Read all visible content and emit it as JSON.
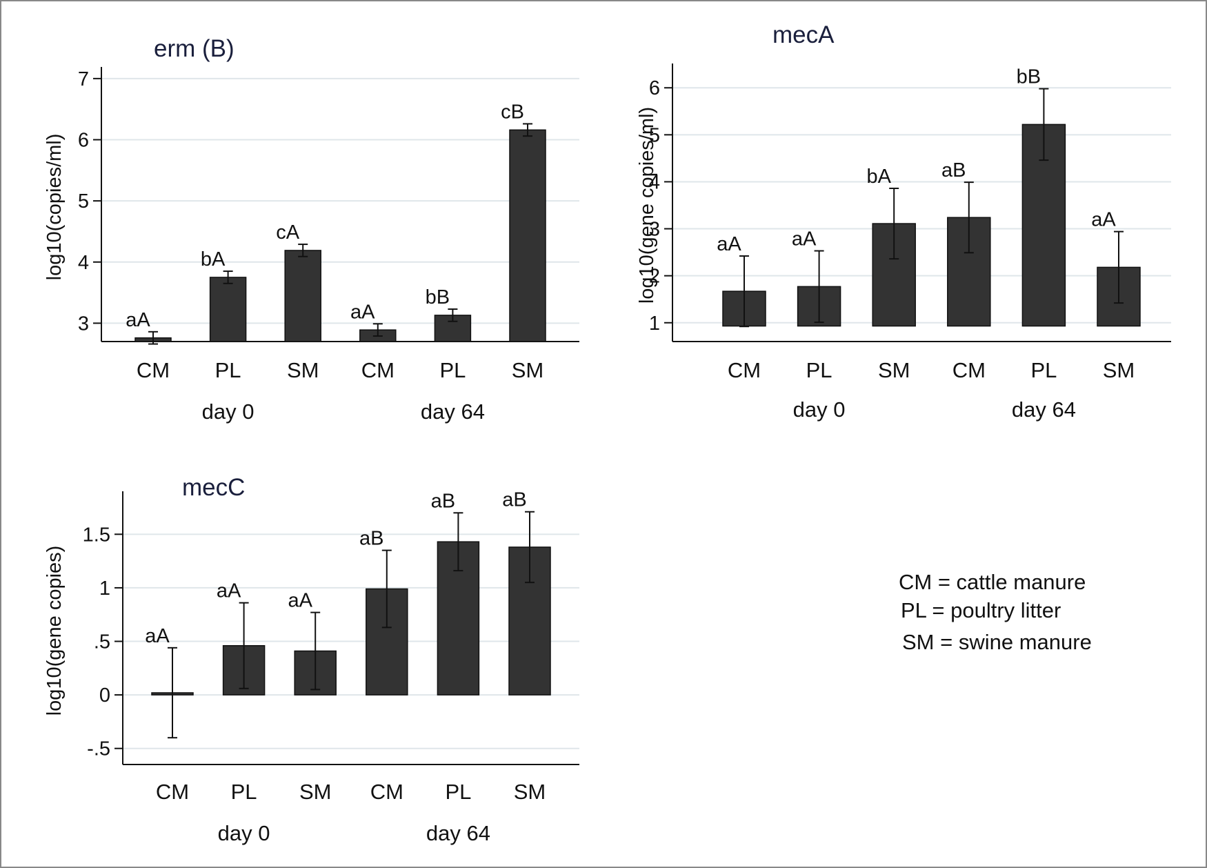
{
  "colors": {
    "bar": "#333333",
    "grid": "#dfe6ea",
    "title": "#1a1f3c",
    "frame": "#888888"
  },
  "legend": [
    "CM = cattle manure",
    "PL = poultry litter",
    "SM = swine manure"
  ],
  "chart_data": [
    {
      "type": "bar",
      "title": "erm (B)",
      "ylabel": "log10(copies/ml)",
      "ylim": [
        2.7,
        7.1
      ],
      "yticks": [
        3,
        4,
        5,
        6,
        7
      ],
      "ytick_labels": [
        "3",
        "4",
        "5",
        "6",
        "7"
      ],
      "baseline": 2.7,
      "categories": [
        "CM",
        "PL",
        "SM",
        "CM",
        "PL",
        "SM"
      ],
      "groups": [
        {
          "label": "day 0",
          "start": 0,
          "end": 2
        },
        {
          "label": "day 64",
          "start": 3,
          "end": 5
        }
      ],
      "values": [
        2.76,
        3.75,
        4.19,
        2.89,
        3.13,
        6.16
      ],
      "errors": [
        0.1,
        0.1,
        0.1,
        0.1,
        0.1,
        0.1
      ],
      "labels": [
        "aA",
        "bA",
        "cA",
        "aA",
        "bB",
        "cB"
      ]
    },
    {
      "type": "bar",
      "title": "mecA",
      "ylabel": "log10(gene copies/ml)",
      "ylim": [
        0.6,
        6.4
      ],
      "yticks": [
        1,
        2,
        3,
        4,
        5,
        6
      ],
      "ytick_labels": [
        "1",
        "2",
        "3",
        "4",
        "5",
        "6"
      ],
      "baseline": 0.93,
      "categories": [
        "CM",
        "PL",
        "SM",
        "CM",
        "PL",
        "SM"
      ],
      "groups": [
        {
          "label": "day 0",
          "start": 0,
          "end": 2
        },
        {
          "label": "day 64",
          "start": 3,
          "end": 5
        }
      ],
      "values": [
        1.67,
        1.77,
        3.11,
        3.24,
        5.22,
        2.18
      ],
      "errors": [
        0.75,
        0.76,
        0.75,
        0.75,
        0.76,
        0.76
      ],
      "labels": [
        "aA",
        "aA",
        "bA",
        "aB",
        "bB",
        "aA"
      ]
    },
    {
      "type": "bar",
      "title": "mecC",
      "ylabel": "log10(gene copies)",
      "ylim": [
        -0.65,
        1.85
      ],
      "yticks": [
        -0.5,
        0,
        0.5,
        1,
        1.5
      ],
      "ytick_labels": [
        "-.5",
        "0",
        ".5",
        "1",
        "1.5"
      ],
      "baseline": 0,
      "categories": [
        "CM",
        "PL",
        "SM",
        "CM",
        "PL",
        "SM"
      ],
      "groups": [
        {
          "label": "day 0",
          "start": 0,
          "end": 2
        },
        {
          "label": "day 64",
          "start": 3,
          "end": 5
        }
      ],
      "values": [
        0.02,
        0.46,
        0.41,
        0.99,
        1.43,
        1.38
      ],
      "errors": [
        0.42,
        0.4,
        0.36,
        0.36,
        0.27,
        0.33
      ],
      "labels": [
        "aA",
        "aA",
        "aA",
        "aB",
        "aB",
        "aB"
      ]
    }
  ]
}
